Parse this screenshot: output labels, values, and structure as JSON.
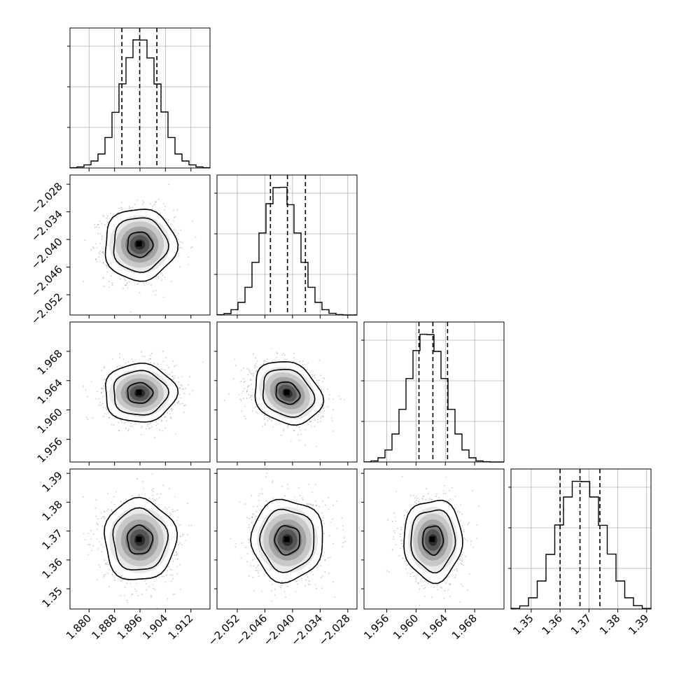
{
  "chart_data": {
    "type": "corner",
    "grid": true,
    "quantile_lines": "dashed",
    "parameters": [
      {
        "range": [
          1.874,
          1.918
        ],
        "ticks": [
          "1.880",
          "1.888",
          "1.896",
          "1.904",
          "1.912"
        ],
        "tick_values": [
          1.88,
          1.888,
          1.896,
          1.904,
          1.912
        ],
        "quantiles": [
          1.8903,
          1.8959,
          1.9013
        ],
        "hist_edges": [
          1.874,
          1.918
        ],
        "hist_counts": [
          2,
          8,
          22,
          50,
          100,
          218,
          398,
          601,
          788,
          915,
          914,
          786,
          600,
          400,
          218,
          100,
          50,
          22,
          8,
          2
        ],
        "hist_ylim": [
          0,
          1000
        ]
      },
      {
        "range": [
          -2.0564,
          -2.026
        ],
        "ticks": [
          "-2.052",
          "-2.046",
          "-2.040",
          "-2.034",
          "-2.028"
        ],
        "tick_values": [
          -2.052,
          -2.046,
          -2.04,
          -2.034,
          -2.028
        ],
        "quantiles": [
          -2.0448,
          -2.0411,
          -2.0372
        ],
        "hist_edges": [
          -2.0564,
          -2.026
        ],
        "hist_counts": [
          2,
          10,
          38,
          90,
          198,
          376,
          586,
          795,
          910,
          912,
          788,
          586,
          376,
          198,
          90,
          38,
          12,
          3,
          0,
          0
        ],
        "hist_ylim": [
          0,
          1000
        ]
      },
      {
        "range": [
          1.9529,
          1.972
        ],
        "ticks": [
          "1.956",
          "1.960",
          "1.964",
          "1.968"
        ],
        "tick_values": [
          1.956,
          1.96,
          1.964,
          1.968
        ],
        "quantiles": [
          1.9604,
          1.9623,
          1.9643
        ],
        "hist_edges": [
          1.9529,
          1.972
        ],
        "hist_counts": [
          1,
          8,
          30,
          86,
          200,
          376,
          596,
          796,
          912,
          910,
          790,
          596,
          376,
          200,
          86,
          30,
          8,
          2,
          0,
          0
        ],
        "hist_ylim": [
          0,
          1000
        ]
      },
      {
        "range": [
          1.343,
          1.3915
        ],
        "ticks": [
          "1.35",
          "1.36",
          "1.37",
          "1.38",
          "1.39"
        ],
        "tick_values": [
          1.35,
          1.36,
          1.37,
          1.38,
          1.39
        ],
        "quantiles": [
          1.36,
          1.3669,
          1.3738
        ],
        "hist_edges": [
          1.343,
          1.3915
        ],
        "hist_counts": [
          4,
          22,
          80,
          200,
          390,
          600,
          800,
          912,
          910,
          800,
          598,
          392,
          200,
          80,
          24,
          4
        ],
        "hist_ylim": [
          0,
          1000
        ]
      }
    ],
    "correlations": [
      [
        1.0,
        0.0,
        0.0,
        0.0
      ],
      [
        0.0,
        1.0,
        -0.25,
        0.0
      ],
      [
        0.0,
        -0.25,
        1.0,
        0.0
      ],
      [
        0.0,
        0.0,
        0.0,
        1.0
      ]
    ],
    "samples_shown": 1400,
    "density_levels": [
      0.39,
      0.86,
      0.99
    ]
  }
}
